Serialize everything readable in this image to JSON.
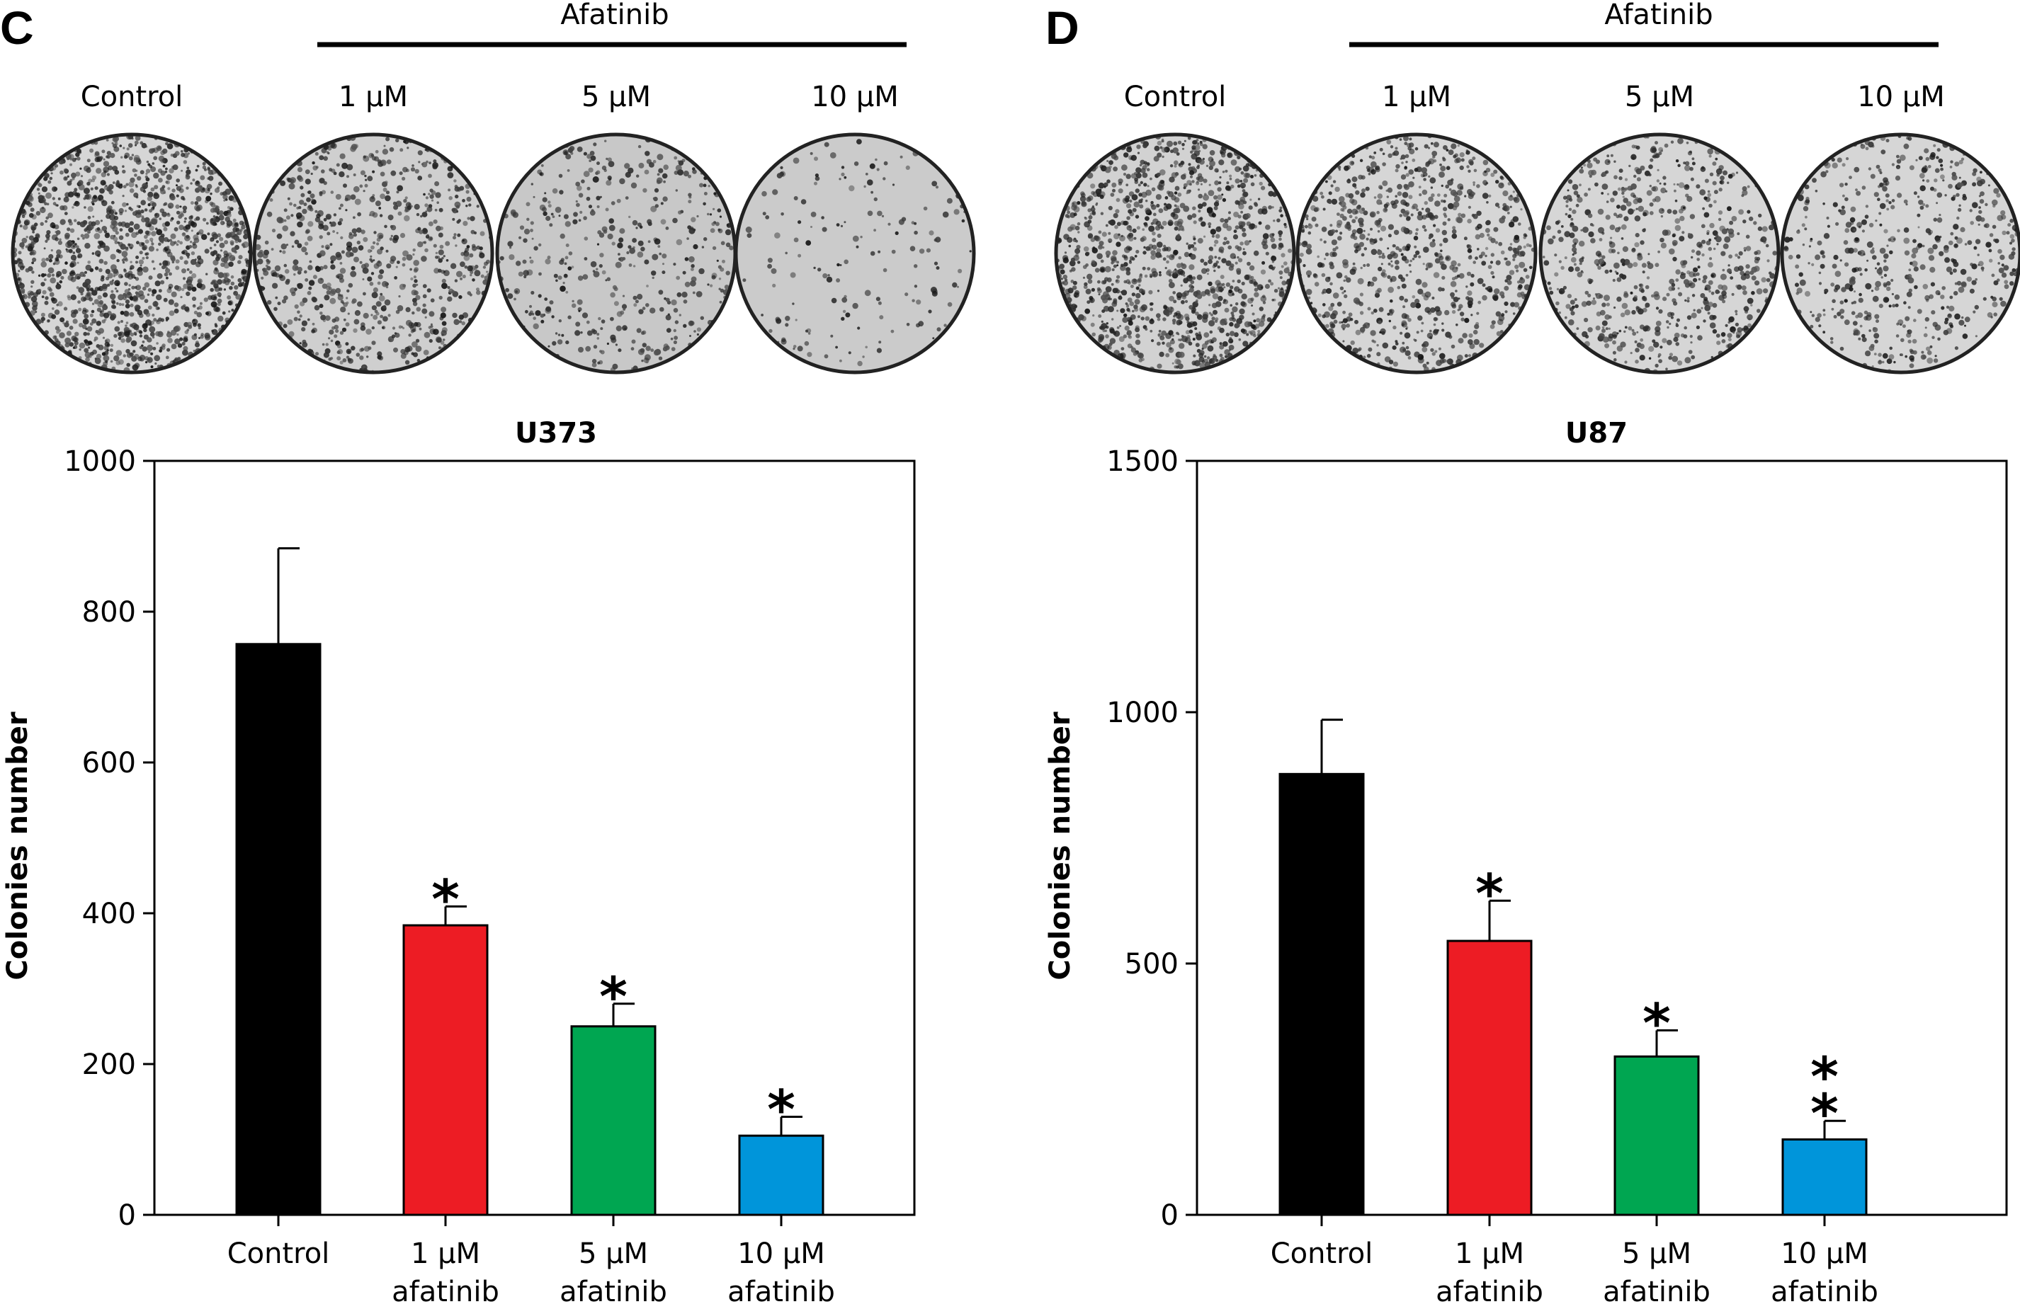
{
  "panels": [
    {
      "letter": "C",
      "drug_label": "Afatinib",
      "dish_labels": [
        "Control",
        "1 μM",
        "5 μM",
        "10 μM"
      ],
      "dish_colony_density": [
        1.0,
        0.55,
        0.32,
        0.12
      ],
      "dish_background": [
        "#d6d6d6",
        "#cfcfcf",
        "#c8c8c8",
        "#cbcbcb"
      ]
    },
    {
      "letter": "D",
      "drug_label": "Afatinib",
      "dish_labels": [
        "Control",
        "1 μM",
        "5 μM",
        "10 μM"
      ],
      "dish_colony_density": [
        0.85,
        0.6,
        0.5,
        0.4
      ],
      "dish_background": [
        "#d2d2d2",
        "#d6d6d6",
        "#d6d6d6",
        "#d6d6d6"
      ]
    }
  ],
  "chart_data": [
    {
      "type": "bar",
      "title": "U373",
      "ylabel": "Colonies number",
      "xlabel": "",
      "ylim": [
        0,
        1000
      ],
      "yticks": [
        0,
        200,
        400,
        600,
        800,
        1000
      ],
      "categories": [
        [
          "Control"
        ],
        [
          "1 μM",
          "afatinib"
        ],
        [
          "5 μM",
          "afatinib"
        ],
        [
          "10 μM",
          "afatinib"
        ]
      ],
      "values": [
        757,
        384,
        250,
        105
      ],
      "errors": [
        127,
        25,
        30,
        25
      ],
      "significance": [
        "",
        "*",
        "*",
        "*"
      ],
      "colors": [
        "#000000",
        "#ed1c24",
        "#00a651",
        "#0095da"
      ],
      "grid": false
    },
    {
      "type": "bar",
      "title": "U87",
      "ylabel": "Colonies number",
      "xlabel": "",
      "ylim": [
        0,
        1500
      ],
      "yticks": [
        0,
        500,
        1000,
        1500
      ],
      "categories": [
        [
          "Control"
        ],
        [
          "1 μM",
          "afatinib"
        ],
        [
          "5 μM",
          "afatinib"
        ],
        [
          "10 μM",
          "afatinib"
        ]
      ],
      "values": [
        877,
        545,
        315,
        150
      ],
      "errors": [
        108,
        80,
        52,
        37
      ],
      "significance": [
        "",
        "*",
        "*",
        "**"
      ],
      "colors": [
        "#000000",
        "#ed1c24",
        "#00a651",
        "#0095da"
      ],
      "grid": false
    }
  ]
}
